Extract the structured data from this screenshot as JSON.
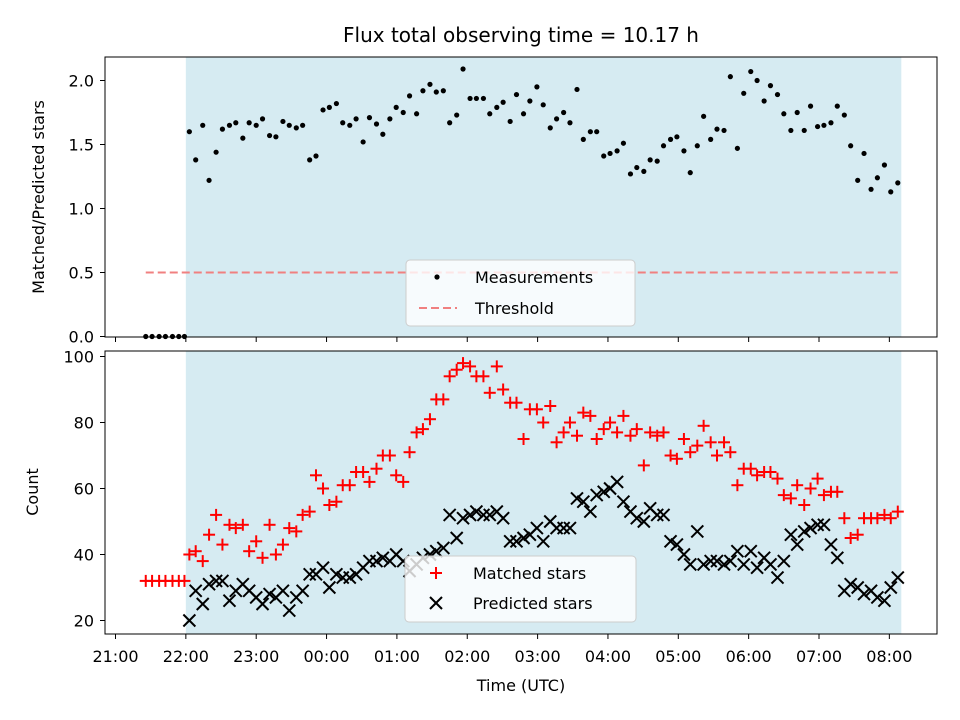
{
  "chart_data": [
    {
      "type": "scatter",
      "title": "Flux total observing time = 10.17 h",
      "xlabel": "",
      "ylabel": "Matched/Predicted stars",
      "x_ticks": [
        "21:00",
        "22:00",
        "23:00",
        "00:00",
        "01:00",
        "02:00",
        "03:00",
        "04:00",
        "05:00",
        "06:00",
        "07:00",
        "08:00"
      ],
      "ylim": [
        0,
        2.2
      ],
      "y_ticks": [
        "0.0",
        "0.5",
        "1.0",
        "1.5",
        "2.0"
      ],
      "observing_window_hours": [
        22.0,
        32.17
      ],
      "threshold": {
        "name": "Threshold",
        "value": 0.5,
        "x_range_hours": [
          21.43,
          32.17
        ],
        "color": "#f08080"
      },
      "series": [
        {
          "name": "Measurements",
          "color": "#000000",
          "x_hours": [
            21.43,
            21.52,
            21.62,
            21.71,
            21.81,
            21.9,
            21.98,
            22.05,
            22.14,
            22.24,
            22.33,
            22.43,
            22.52,
            22.62,
            22.71,
            22.81,
            22.9,
            23.0,
            23.09,
            23.19,
            23.28,
            23.38,
            23.47,
            23.57,
            23.66,
            23.76,
            23.85,
            23.95,
            24.04,
            24.14,
            24.23,
            24.33,
            24.42,
            24.52,
            24.61,
            24.71,
            24.8,
            24.9,
            24.99,
            25.09,
            25.18,
            25.28,
            25.37,
            25.47,
            25.56,
            25.66,
            25.75,
            25.85,
            25.94,
            26.04,
            26.13,
            26.23,
            26.32,
            26.42,
            26.51,
            26.61,
            26.7,
            26.8,
            26.89,
            26.99,
            27.08,
            27.18,
            27.27,
            27.37,
            27.46,
            27.56,
            27.65,
            27.75,
            27.84,
            27.94,
            28.03,
            28.13,
            28.22,
            28.32,
            28.41,
            28.51,
            28.6,
            28.7,
            28.79,
            28.89,
            28.98,
            29.08,
            29.17,
            29.27,
            29.36,
            29.46,
            29.55,
            29.65,
            29.74,
            29.84,
            29.93,
            30.03,
            30.12,
            30.22,
            30.31,
            30.41,
            30.5,
            30.6,
            30.69,
            30.79,
            30.88,
            30.98,
            31.07,
            31.17,
            31.26,
            31.36,
            31.45,
            31.55,
            31.64,
            31.74,
            31.83,
            31.93,
            32.02,
            32.12
          ],
          "y": [
            0,
            0,
            0,
            0,
            0,
            0,
            0,
            1.6,
            1.38,
            1.65,
            1.22,
            1.44,
            1.62,
            1.65,
            1.67,
            1.55,
            1.67,
            1.65,
            1.7,
            1.57,
            1.56,
            1.68,
            1.65,
            1.63,
            1.65,
            1.38,
            1.41,
            1.77,
            1.79,
            1.82,
            1.67,
            1.65,
            1.7,
            1.52,
            1.71,
            1.66,
            1.58,
            1.7,
            1.79,
            1.75,
            1.88,
            1.74,
            1.92,
            1.97,
            1.91,
            1.92,
            1.67,
            1.73,
            2.09,
            1.86,
            1.86,
            1.86,
            1.74,
            1.79,
            1.83,
            1.68,
            1.89,
            1.74,
            1.84,
            1.95,
            1.81,
            1.63,
            1.7,
            1.75,
            1.67,
            1.93,
            1.54,
            1.6,
            1.6,
            1.41,
            1.43,
            1.45,
            1.51,
            1.27,
            1.32,
            1.29,
            1.38,
            1.37,
            1.49,
            1.54,
            1.56,
            1.45,
            1.28,
            1.49,
            1.72,
            1.54,
            1.62,
            1.61,
            2.03,
            1.47,
            1.9,
            2.07,
            2.0,
            1.84,
            1.96,
            1.89,
            1.74,
            1.61,
            1.75,
            1.61,
            1.8,
            1.64,
            1.65,
            1.67,
            1.8,
            1.73,
            1.49,
            1.22,
            1.43,
            1.15,
            1.24,
            1.34,
            1.13,
            1.2
          ]
        }
      ],
      "legend": {
        "placement": "lower-center"
      }
    },
    {
      "type": "scatter",
      "title": "",
      "xlabel": "Time (UTC)",
      "ylabel": "Count",
      "x_ticks": [
        "21:00",
        "22:00",
        "23:00",
        "00:00",
        "01:00",
        "02:00",
        "03:00",
        "04:00",
        "05:00",
        "06:00",
        "07:00",
        "08:00"
      ],
      "ylim": [
        17,
        101
      ],
      "y_ticks": [
        "20",
        "40",
        "60",
        "80",
        "100"
      ],
      "observing_window_hours": [
        22.0,
        32.17
      ],
      "series": [
        {
          "name": "Matched stars",
          "marker": "plus",
          "color": "#ff0000",
          "x_hours": [
            21.43,
            21.52,
            21.62,
            21.71,
            21.81,
            21.9,
            21.98,
            22.05,
            22.14,
            22.24,
            22.33,
            22.43,
            22.52,
            22.62,
            22.71,
            22.81,
            22.9,
            23.0,
            23.09,
            23.19,
            23.28,
            23.38,
            23.47,
            23.57,
            23.66,
            23.76,
            23.85,
            23.95,
            24.04,
            24.14,
            24.23,
            24.33,
            24.42,
            24.52,
            24.61,
            24.71,
            24.8,
            24.9,
            24.99,
            25.09,
            25.18,
            25.28,
            25.37,
            25.47,
            25.56,
            25.66,
            25.75,
            25.85,
            25.94,
            26.04,
            26.13,
            26.23,
            26.32,
            26.42,
            26.51,
            26.61,
            26.7,
            26.8,
            26.89,
            26.99,
            27.08,
            27.18,
            27.27,
            27.37,
            27.46,
            27.56,
            27.65,
            27.75,
            27.84,
            27.94,
            28.03,
            28.13,
            28.22,
            28.32,
            28.41,
            28.51,
            28.6,
            28.7,
            28.79,
            28.89,
            28.98,
            29.08,
            29.17,
            29.27,
            29.36,
            29.46,
            29.55,
            29.65,
            29.74,
            29.84,
            29.93,
            30.03,
            30.12,
            30.22,
            30.31,
            30.41,
            30.5,
            30.6,
            30.69,
            30.79,
            30.88,
            30.98,
            31.07,
            31.17,
            31.26,
            31.36,
            31.45,
            31.55,
            31.64,
            31.74,
            31.83,
            31.93,
            32.02,
            32.12
          ],
          "y": [
            32,
            32,
            32,
            32,
            32,
            32,
            32,
            40,
            41,
            38,
            46,
            52,
            43,
            49,
            48,
            49,
            41,
            44,
            39,
            49,
            40,
            43,
            48,
            47,
            52,
            53,
            64,
            60,
            55,
            56,
            61,
            61,
            65,
            65,
            62,
            66,
            70,
            70,
            64,
            62,
            71,
            77,
            78,
            81,
            87,
            87,
            94,
            96,
            98,
            97,
            94,
            94,
            89,
            97,
            90,
            86,
            86,
            75,
            84,
            84,
            80,
            85,
            74,
            77,
            80,
            76,
            83,
            82,
            75,
            78,
            80,
            77,
            82,
            76,
            78,
            67,
            77,
            76,
            77,
            70,
            69,
            75,
            71,
            73,
            79,
            74,
            70,
            74,
            71,
            61,
            66,
            66,
            64,
            65,
            65,
            63,
            58,
            57,
            61,
            55,
            60,
            63,
            58,
            59,
            59,
            51,
            45,
            46,
            51,
            51,
            51,
            52,
            51,
            53
          ]
        },
        {
          "name": "Predicted stars",
          "marker": "x",
          "color": "#000000",
          "x_hours": [
            22.05,
            22.14,
            22.24,
            22.33,
            22.43,
            22.52,
            22.62,
            22.71,
            22.81,
            22.9,
            23.0,
            23.09,
            23.19,
            23.28,
            23.38,
            23.47,
            23.57,
            23.66,
            23.76,
            23.85,
            23.95,
            24.04,
            24.14,
            24.23,
            24.33,
            24.42,
            24.52,
            24.61,
            24.71,
            24.8,
            24.9,
            24.99,
            25.09,
            25.18,
            25.28,
            25.37,
            25.47,
            25.56,
            25.66,
            25.75,
            25.85,
            25.94,
            26.04,
            26.13,
            26.23,
            26.32,
            26.42,
            26.51,
            26.61,
            26.7,
            26.8,
            26.89,
            26.99,
            27.08,
            27.18,
            27.27,
            27.37,
            27.46,
            27.56,
            27.65,
            27.75,
            27.84,
            27.94,
            28.03,
            28.13,
            28.22,
            28.32,
            28.41,
            28.51,
            28.6,
            28.7,
            28.79,
            28.89,
            28.98,
            29.08,
            29.17,
            29.27,
            29.36,
            29.46,
            29.55,
            29.65,
            29.74,
            29.84,
            29.93,
            30.03,
            30.12,
            30.22,
            30.31,
            30.41,
            30.5,
            30.6,
            30.69,
            30.79,
            30.88,
            30.98,
            31.07,
            31.17,
            31.26,
            31.36,
            31.45,
            31.55,
            31.64,
            31.74,
            31.83,
            31.93,
            32.02,
            32.12
          ],
          "y": [
            20,
            29,
            25,
            31,
            32,
            32,
            26,
            29,
            31,
            29,
            27,
            25,
            28,
            27,
            29,
            23,
            27,
            29,
            34,
            34,
            36,
            30,
            34,
            33,
            33,
            34,
            36,
            38,
            38,
            39,
            38,
            40,
            38,
            35,
            37,
            39,
            40,
            41,
            42,
            52,
            45,
            51,
            52,
            53,
            52,
            52,
            53,
            51,
            44,
            44,
            45,
            46,
            48,
            44,
            50,
            48,
            48,
            48,
            57,
            56,
            53,
            58,
            59,
            60,
            62,
            56,
            53,
            51,
            50,
            54,
            52,
            52,
            44,
            43,
            40,
            37,
            47,
            37,
            38,
            38,
            37,
            38,
            41,
            37,
            41,
            36,
            39,
            37,
            33,
            38,
            46,
            43,
            47,
            48,
            49,
            49,
            43,
            39,
            29,
            31,
            30,
            28,
            29,
            27,
            26,
            30,
            33
          ]
        }
      ],
      "legend": {
        "placement": "lower-center"
      }
    }
  ]
}
